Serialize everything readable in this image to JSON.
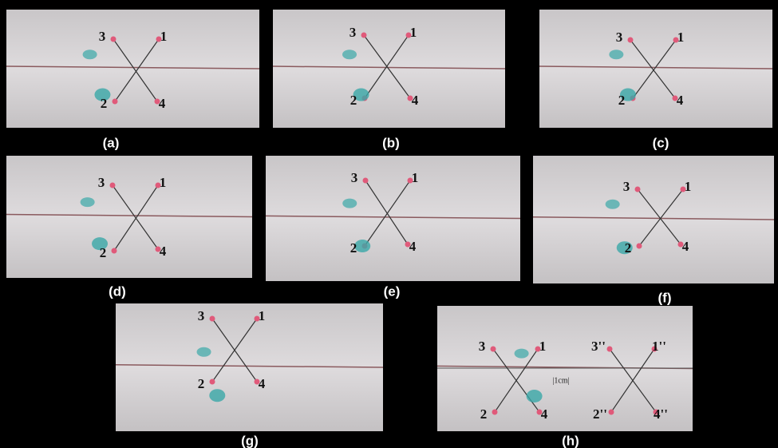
{
  "panels": [
    {
      "caption": "(a)",
      "labels": [
        "3",
        "1",
        "2",
        "4"
      ]
    },
    {
      "caption": "(b)",
      "labels": [
        "3",
        "1",
        "2",
        "4"
      ]
    },
    {
      "caption": "(c)",
      "labels": [
        "3",
        "1",
        "2",
        "4"
      ]
    },
    {
      "caption": "(d)",
      "labels": [
        "3",
        "1",
        "2",
        "4"
      ]
    },
    {
      "caption": "(e)",
      "labels": [
        "3",
        "1",
        "2",
        "4"
      ]
    },
    {
      "caption": "(f)",
      "labels": [
        "3",
        "1",
        "2",
        "4"
      ]
    },
    {
      "caption": "(g)",
      "labels": [
        "3",
        "1",
        "2",
        "4"
      ]
    },
    {
      "caption": "(h)",
      "labels": [
        "3",
        "1",
        "3''",
        "1''",
        "2",
        "4",
        "2''",
        "4''",
        "|1cm|"
      ]
    }
  ]
}
